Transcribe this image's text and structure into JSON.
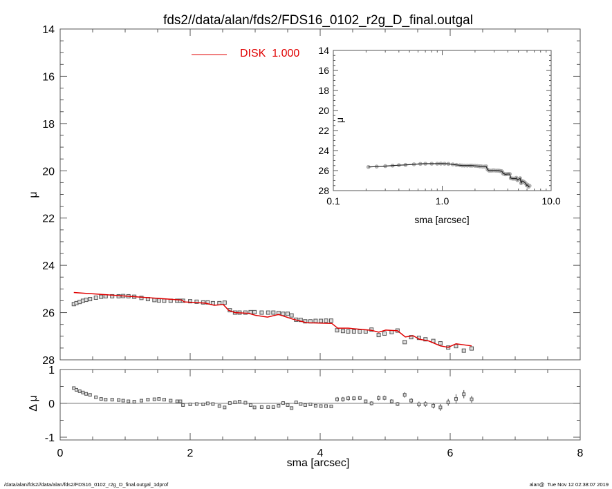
{
  "title": "fds2//data/alan/fds2/FDS16_0102_r2g_D_final.outgal",
  "footer_left": "/data/alan/fds2//data/alan/fds2/FDS16_0102_r2g_D_final.outgal_1dprof",
  "footer_right": "alan@  Tue Nov 12 02:38:07 2019",
  "colors": {
    "model": "#e00000",
    "data": "#555555",
    "inset_model": "#8b1a1a"
  },
  "chart_data": [
    {
      "type": "scatter",
      "panel": "main",
      "xlabel": "sma [arcsec]",
      "ylabel": "μ",
      "xlim": [
        0,
        8
      ],
      "ylim": [
        28,
        14
      ],
      "y_inverted": true,
      "xticks": [
        "0",
        "2",
        "4",
        "6",
        "8"
      ],
      "yticks": [
        "14",
        "16",
        "18",
        "20",
        "22",
        "24",
        "26",
        "28"
      ],
      "legend": {
        "label": "DISK  1.000",
        "position": "top-center"
      },
      "series": [
        {
          "kind": "points",
          "x": [
            0.21,
            0.25,
            0.3,
            0.35,
            0.4,
            0.46,
            0.55,
            0.63,
            0.7,
            0.8,
            0.9,
            0.97,
            1.05,
            1.14,
            1.25,
            1.35,
            1.45,
            1.52,
            1.6,
            1.7,
            1.8,
            1.85,
            1.89,
            2.0,
            2.1,
            2.2,
            2.27,
            2.35,
            2.45,
            2.53,
            2.61,
            2.69,
            2.76,
            2.85,
            2.93,
            2.99,
            3.1,
            3.2,
            3.28,
            3.36,
            3.43,
            3.5,
            3.56,
            3.63,
            3.7,
            3.77,
            3.85,
            3.93,
            4.01,
            4.09,
            4.17,
            4.26,
            4.35,
            4.43,
            4.52,
            4.61,
            4.7,
            4.79,
            4.9,
            4.99,
            5.1,
            5.19,
            5.3,
            5.4,
            5.52,
            5.62,
            5.74,
            5.85,
            5.97,
            6.09,
            6.21,
            6.33
          ],
          "y": [
            25.64,
            25.6,
            25.55,
            25.5,
            25.46,
            25.43,
            25.37,
            25.33,
            25.31,
            25.31,
            25.31,
            25.3,
            25.31,
            25.33,
            25.38,
            25.43,
            25.47,
            25.49,
            25.5,
            25.5,
            25.5,
            25.5,
            25.5,
            25.52,
            25.54,
            25.57,
            25.57,
            25.6,
            25.6,
            25.58,
            25.9,
            26.0,
            26.0,
            26.0,
            25.98,
            25.98,
            26.0,
            26.0,
            26.0,
            26.02,
            26.05,
            26.05,
            26.12,
            26.3,
            26.31,
            26.37,
            26.37,
            26.35,
            26.35,
            26.34,
            26.34,
            26.75,
            26.78,
            26.8,
            26.8,
            26.8,
            26.8,
            26.72,
            26.95,
            26.89,
            26.83,
            26.76,
            27.25,
            27.04,
            27.07,
            27.13,
            27.2,
            27.3,
            27.48,
            27.42,
            27.61,
            27.52
          ]
        },
        {
          "kind": "line",
          "name": "DISK  1.000",
          "x": [
            0.21,
            1.0,
            1.87,
            1.91,
            2.23,
            2.37,
            2.51,
            2.59,
            2.69,
            2.9,
            3.01,
            3.19,
            3.36,
            3.57,
            3.79,
            4.18,
            4.27,
            4.43,
            4.79,
            4.9,
            5.01,
            5.19,
            5.31,
            5.43,
            5.53,
            5.67,
            5.85,
            5.97,
            6.09,
            6.33
          ],
          "y": [
            25.15,
            25.3,
            25.47,
            25.55,
            25.6,
            25.69,
            25.66,
            25.9,
            26.0,
            26.03,
            26.12,
            26.19,
            26.08,
            26.27,
            26.43,
            26.46,
            26.66,
            26.66,
            26.75,
            26.83,
            26.74,
            26.77,
            27.03,
            26.98,
            27.13,
            27.2,
            27.41,
            27.47,
            27.32,
            27.41
          ]
        }
      ]
    },
    {
      "type": "scatter",
      "panel": "residual",
      "ylabel": "Δ μ",
      "xlim": [
        0,
        8
      ],
      "ylim": [
        -1,
        1
      ],
      "yticks": [
        "1",
        "0",
        "-1"
      ],
      "x": [
        0.21,
        0.25,
        0.3,
        0.35,
        0.4,
        0.46,
        0.55,
        0.63,
        0.7,
        0.8,
        0.9,
        0.97,
        1.05,
        1.14,
        1.25,
        1.35,
        1.45,
        1.52,
        1.6,
        1.7,
        1.8,
        1.85,
        1.89,
        2.0,
        2.1,
        2.2,
        2.27,
        2.35,
        2.45,
        2.53,
        2.61,
        2.69,
        2.76,
        2.85,
        2.93,
        2.99,
        3.1,
        3.2,
        3.28,
        3.36,
        3.43,
        3.5,
        3.56,
        3.63,
        3.7,
        3.77,
        3.85,
        3.93,
        4.01,
        4.09,
        4.17,
        4.26,
        4.35,
        4.43,
        4.52,
        4.61,
        4.7,
        4.79,
        4.9,
        4.99,
        5.1,
        5.19,
        5.3,
        5.4,
        5.52,
        5.62,
        5.74,
        5.85,
        5.97,
        6.09,
        6.21,
        6.33
      ],
      "y": [
        0.45,
        0.4,
        0.36,
        0.32,
        0.28,
        0.25,
        0.18,
        0.13,
        0.11,
        0.11,
        0.1,
        0.08,
        0.06,
        0.05,
        0.08,
        0.11,
        0.12,
        0.13,
        0.11,
        0.08,
        0.06,
        0.06,
        -0.05,
        -0.03,
        -0.02,
        -0.03,
        0,
        -0.02,
        -0.08,
        -0.12,
        0.01,
        0.03,
        0.05,
        0.02,
        -0.05,
        -0.12,
        -0.11,
        -0.11,
        -0.11,
        -0.07,
        0.01,
        -0.05,
        -0.14,
        0.03,
        -0.02,
        -0.05,
        -0.03,
        -0.07,
        -0.08,
        -0.08,
        -0.09,
        0.12,
        0.12,
        0.15,
        0.15,
        0.16,
        0.06,
        0,
        0.16,
        0.16,
        0.06,
        -0.02,
        0.25,
        0.08,
        -0.03,
        -0.02,
        -0.07,
        -0.12,
        0.03,
        0.13,
        0.27,
        0.12
      ],
      "err": [
        0.01,
        0.01,
        0.01,
        0.01,
        0.01,
        0.01,
        0.01,
        0.01,
        0.01,
        0.01,
        0.01,
        0.01,
        0.01,
        0.01,
        0.01,
        0.01,
        0.01,
        0.01,
        0.01,
        0.01,
        0.01,
        0.01,
        0.02,
        0.02,
        0.02,
        0.02,
        0.02,
        0.02,
        0.02,
        0.02,
        0.02,
        0.02,
        0.02,
        0.02,
        0.02,
        0.02,
        0.03,
        0.03,
        0.03,
        0.03,
        0.03,
        0.03,
        0.03,
        0.03,
        0.03,
        0.03,
        0.03,
        0.03,
        0.03,
        0.03,
        0.03,
        0.07,
        0.07,
        0.07,
        0.06,
        0.06,
        0.05,
        0.06,
        0.07,
        0.07,
        0.06,
        0.06,
        0.08,
        0.08,
        0.08,
        0.08,
        0.08,
        0.1,
        0.1,
        0.14,
        0.12,
        0.1
      ]
    },
    {
      "type": "scatter",
      "panel": "inset",
      "xlabel": "sma [arcsec]",
      "ylabel": "μ",
      "xscale": "log",
      "xlim": [
        0.1,
        10
      ],
      "ylim": [
        28,
        14
      ],
      "xticks": [
        "0.1",
        "1.0",
        "10.0"
      ],
      "yticks": [
        "14",
        "16",
        "18",
        "20",
        "22",
        "24",
        "26",
        "28"
      ]
    }
  ]
}
